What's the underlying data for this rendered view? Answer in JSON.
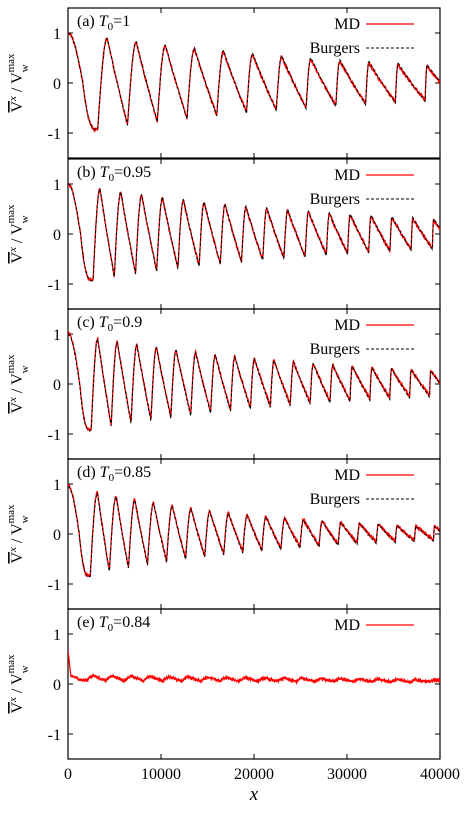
{
  "figure": {
    "xlabel": "x",
    "ylabel": {
      "main": "V",
      "sup": "x",
      "slash": " / ",
      "den": "V",
      "den_sub": "w",
      "den_sup": "max"
    },
    "x_ticks": [
      "0",
      "10000",
      "20000",
      "30000",
      "40000"
    ],
    "y_ticks": [
      "1",
      "0",
      "-1"
    ]
  },
  "chart_data": [
    {
      "type": "line",
      "panel_label": "(a)",
      "param_symbol": "T",
      "param_sub": "0",
      "param_value": "=1",
      "xlim": [
        0,
        40000
      ],
      "ylim": [
        -1.5,
        1.5
      ],
      "colors": {
        "MD": "#ff0000",
        "Burgers": "#000000"
      },
      "series": [
        {
          "name": "MD",
          "style": "solid",
          "model": {
            "x0": 3200,
            "dx": 3200,
            "a0": 1.0,
            "decay": 2.8e-05,
            "r0": 0.35,
            "r1": 0.05,
            "noise": 0.03,
            "offset": 0.0
          }
        },
        {
          "name": "Burgers",
          "style": "dashed",
          "model": {
            "x0": 3200,
            "dx": 3200,
            "a0": 1.0,
            "decay": 2.6e-05,
            "r0": 0.35,
            "r1": 0.06,
            "noise": 0.0,
            "offset": 0.0
          }
        }
      ],
      "legend": "top-right"
    },
    {
      "type": "line",
      "panel_label": "(b)",
      "param_symbol": "T",
      "param_sub": "0",
      "param_value": "=0.95",
      "xlim": [
        0,
        40000
      ],
      "ylim": [
        -1.5,
        1.5
      ],
      "colors": {
        "MD": "#ff0000",
        "Burgers": "#000000"
      },
      "series": [
        {
          "name": "MD",
          "style": "solid",
          "model": {
            "x0": 2700,
            "dx": 2280,
            "a0": 1.0,
            "decay": 3.2e-05,
            "r0": 0.35,
            "r1": 0.05,
            "noise": 0.03,
            "offset": 0.0
          }
        },
        {
          "name": "Burgers",
          "style": "dashed",
          "model": {
            "x0": 2700,
            "dx": 2280,
            "a0": 1.0,
            "decay": 3e-05,
            "r0": 0.35,
            "r1": 0.06,
            "noise": 0.0,
            "offset": 0.0
          }
        }
      ],
      "legend": "top-right"
    },
    {
      "type": "line",
      "panel_label": "(c)",
      "param_symbol": "T",
      "param_sub": "0",
      "param_value": "=0.9",
      "xlim": [
        0,
        40000
      ],
      "ylim": [
        -1.5,
        1.5
      ],
      "colors": {
        "MD": "#ff0000",
        "Burgers": "#000000"
      },
      "series": [
        {
          "name": "MD",
          "style": "solid",
          "model": {
            "x0": 2500,
            "dx": 2140,
            "a0": 1.0,
            "decay": 3.6e-05,
            "r0": 0.35,
            "r1": 0.05,
            "noise": 0.03,
            "offset": 0.02
          }
        },
        {
          "name": "Burgers",
          "style": "dashed",
          "model": {
            "x0": 2500,
            "dx": 2140,
            "a0": 1.0,
            "decay": 3.4e-05,
            "r0": 0.35,
            "r1": 0.06,
            "noise": 0.0,
            "offset": 0.0
          }
        }
      ],
      "legend": "top-right"
    },
    {
      "type": "line",
      "panel_label": "(d)",
      "param_symbol": "T",
      "param_sub": "0",
      "param_value": "=0.85",
      "xlim": [
        0,
        40000
      ],
      "ylim": [
        -1.5,
        1.5
      ],
      "colors": {
        "MD": "#ff0000",
        "Burgers": "#000000"
      },
      "series": [
        {
          "name": "MD",
          "style": "solid",
          "model": {
            "x0": 2400,
            "dx": 2050,
            "a0": 0.95,
            "decay": 5e-05,
            "r0": 0.4,
            "r1": 0.05,
            "noise": 0.03,
            "offset": 0.02
          }
        },
        {
          "name": "Burgers",
          "style": "dashed",
          "model": {
            "x0": 2400,
            "dx": 2050,
            "a0": 0.95,
            "decay": 4.8e-05,
            "r0": 0.4,
            "r1": 0.06,
            "noise": 0.0,
            "offset": 0.0
          }
        }
      ],
      "legend": "top-right"
    },
    {
      "type": "line",
      "panel_label": "(e)",
      "param_symbol": "T",
      "param_sub": "0",
      "param_value": "=0.84",
      "xlim": [
        0,
        40000
      ],
      "ylim": [
        -1.5,
        1.5
      ],
      "colors": {
        "MD": "#ff0000"
      },
      "series": [
        {
          "name": "MD",
          "style": "solid",
          "model": {
            "x0": 2000,
            "dx": 2050,
            "a0": 0.05,
            "decay": 2e-05,
            "r0": 0.4,
            "r1": 0.3,
            "noise": 0.025,
            "offset": 0.12,
            "end_offset": 0.06,
            "spike": 0.5
          }
        }
      ],
      "legend": "top-right"
    }
  ]
}
